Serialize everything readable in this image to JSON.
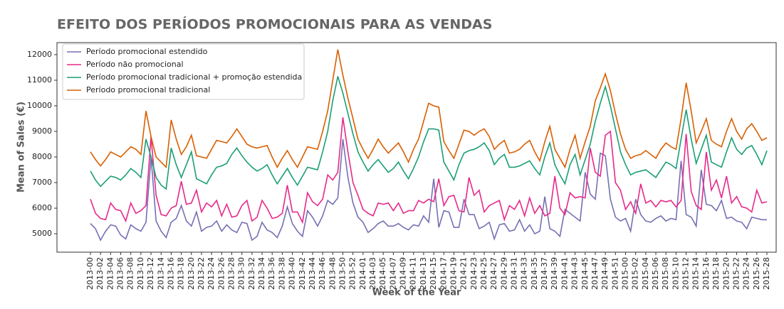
{
  "chart_data": {
    "type": "line",
    "title": "EFEITO DOS PERÍODOS PROMOCIONAIS PARA AS VENDAS",
    "xlabel": "Week of the Year",
    "ylabel": "Mean of Sales (€)",
    "legend": "upper left",
    "categories": [
      "2013-00",
      null,
      "2013-02",
      null,
      "2013-04",
      null,
      "2013-06",
      null,
      "2013-08",
      null,
      "2013-10",
      null,
      "2013-12",
      null,
      "2013-14",
      null,
      "2013-16",
      null,
      "2013-18",
      null,
      "2013-20",
      null,
      "2013-22",
      null,
      "2013-24",
      null,
      "2013-26",
      null,
      "2013-28",
      null,
      "2013-30",
      null,
      "2013-32",
      null,
      "2013-34",
      null,
      "2013-36",
      null,
      "2013-38",
      null,
      "2013-40",
      null,
      "2013-42",
      null,
      "2013-44",
      null,
      "2013-46",
      null,
      "2013-48",
      null,
      "2013-50",
      null,
      "2013-52",
      null,
      "2014-01",
      null,
      "2014-03",
      null,
      "2014-05",
      null,
      "2014-07",
      null,
      "2014-09",
      null,
      "2014-11",
      null,
      "2014-13",
      null,
      "2014-15",
      null,
      "2014-17",
      null,
      "2014-19",
      null,
      "2014-21",
      null,
      "2014-23",
      null,
      "2014-25",
      null,
      "2014-27",
      null,
      "2014-29",
      null,
      "2014-31",
      null,
      "2014-33",
      null,
      "2014-35",
      null,
      "2014-37",
      null,
      "2014-39",
      null,
      "2014-41",
      null,
      "2014-43",
      null,
      "2014-45",
      null,
      "2014-47",
      null,
      "2014-49",
      null,
      "2014-51",
      null,
      "2015-00",
      null,
      "2015-02",
      null,
      "2015-04",
      null,
      "2015-06",
      null,
      "2015-08",
      null,
      "2015-10",
      null,
      "2015-12",
      null,
      "2015-14",
      null,
      "2015-16",
      null,
      "2015-18",
      null,
      "2015-20",
      null,
      "2015-22",
      null,
      "2015-24",
      null,
      "2015-26",
      null,
      "2015-28"
    ],
    "ylim": [
      4280,
      12470
    ],
    "yticks": [
      5000,
      6000,
      7000,
      8000,
      9000,
      10000,
      11000,
      12000
    ],
    "series": [
      {
        "name": "Período promocional estendido",
        "color": "#7570b3",
        "values": [
          5400,
          5200,
          4750,
          5100,
          5350,
          5300,
          4950,
          4800,
          5350,
          5200,
          5100,
          5450,
          8000,
          5500,
          5100,
          4850,
          5450,
          5600,
          6100,
          5500,
          5300,
          5850,
          5100,
          5250,
          5300,
          5500,
          5100,
          5350,
          5150,
          5050,
          5450,
          5400,
          4750,
          4900,
          5450,
          5150,
          5050,
          4850,
          5300,
          6050,
          5400,
          5100,
          4900,
          5900,
          5650,
          5300,
          5700,
          6300,
          6150,
          6400,
          8700,
          7200,
          6200,
          5650,
          5450,
          5050,
          5200,
          5400,
          5500,
          5300,
          5300,
          5400,
          5250,
          5150,
          5350,
          5300,
          5700,
          5450,
          7150,
          5250,
          5900,
          5850,
          5250,
          5250,
          6350,
          5750,
          5750,
          5200,
          5300,
          5450,
          4800,
          5350,
          5400,
          5100,
          5150,
          5550,
          5100,
          5350,
          5000,
          5100,
          6450,
          5200,
          5100,
          4900,
          5950,
          5800,
          5650,
          5500,
          7400,
          6550,
          6350,
          8150,
          8050,
          6350,
          5650,
          5500,
          5600,
          5100,
          6350,
          5750,
          5500,
          5450,
          5600,
          5700,
          5500,
          5600,
          5550,
          7850,
          5750,
          5650,
          5300,
          7500,
          6150,
          6100,
          5900,
          6300,
          5600,
          5650,
          5500,
          5450,
          5200,
          5650,
          5600,
          5550,
          5550
        ]
      },
      {
        "name": "Período não promocional",
        "color": "#e7298a",
        "values": [
          6350,
          5800,
          5600,
          5550,
          6200,
          5950,
          5900,
          5500,
          6200,
          5800,
          5900,
          6100,
          8800,
          6500,
          5750,
          5700,
          6000,
          6100,
          7050,
          6150,
          6200,
          6700,
          5850,
          6200,
          6050,
          6300,
          5700,
          6150,
          5650,
          5700,
          6100,
          6300,
          5500,
          5650,
          6300,
          6000,
          5600,
          5650,
          5800,
          6900,
          5850,
          5850,
          5450,
          6600,
          6250,
          6100,
          6350,
          7300,
          7100,
          7400,
          9550,
          8200,
          7000,
          6500,
          5950,
          5800,
          5700,
          6200,
          6150,
          6200,
          5900,
          6200,
          5800,
          5900,
          5900,
          6300,
          6200,
          6350,
          6250,
          7150,
          6100,
          6450,
          6500,
          5900,
          5850,
          7200,
          6500,
          6700,
          5850,
          6100,
          6200,
          6300,
          5550,
          6100,
          5950,
          6300,
          5700,
          6400,
          5800,
          6100,
          5700,
          5800,
          7250,
          6000,
          5750,
          6600,
          6400,
          6450,
          6400,
          8350,
          7400,
          7250,
          8850,
          9000,
          7000,
          6700,
          5950,
          6250,
          5800,
          6950,
          6200,
          6300,
          6050,
          6300,
          6250,
          6300,
          6050,
          6300,
          8900,
          6650,
          6100,
          5950,
          8200,
          6700,
          7100,
          6400,
          7250,
          6200,
          6450,
          6050,
          6000,
          5850,
          6700,
          6200,
          6250
        ]
      },
      {
        "name": "Período promocional tradicional + promoção estendida",
        "color": "#1b9e77",
        "values": [
          7450,
          7100,
          6850,
          7050,
          7250,
          7200,
          7100,
          7300,
          7550,
          7400,
          7200,
          8700,
          8000,
          7200,
          6900,
          6750,
          8350,
          7700,
          7200,
          7700,
          8200,
          7150,
          7050,
          6950,
          7300,
          7600,
          7650,
          7750,
          8100,
          8350,
          8050,
          7800,
          7600,
          7450,
          7550,
          7700,
          7300,
          6950,
          7250,
          7550,
          7200,
          6900,
          7250,
          7600,
          7550,
          7500,
          8200,
          9000,
          10200,
          11150,
          10500,
          9700,
          8900,
          8200,
          7800,
          7450,
          7700,
          7900,
          7650,
          7400,
          7550,
          7800,
          7450,
          7150,
          7550,
          8000,
          8600,
          9100,
          9100,
          9050,
          7800,
          7450,
          7100,
          7700,
          8150,
          8250,
          8300,
          8400,
          8550,
          8250,
          7700,
          7950,
          8100,
          7600,
          7600,
          7650,
          7750,
          7850,
          7550,
          7300,
          8000,
          8550,
          7700,
          7300,
          6950,
          7700,
          8100,
          7300,
          7900,
          8500,
          9400,
          10100,
          10750,
          10000,
          9100,
          8200,
          7700,
          7300,
          7400,
          7450,
          7500,
          7350,
          7200,
          7500,
          7800,
          7700,
          7550,
          8700,
          9850,
          8700,
          7750,
          8300,
          8850,
          7800,
          7700,
          7600,
          8200,
          8750,
          8300,
          8100,
          8350,
          8450,
          8100,
          7700,
          8250
        ]
      },
      {
        "name": "Período promocional tradicional",
        "color": "#d95f02",
        "values": [
          8200,
          7900,
          7650,
          7900,
          8200,
          8100,
          8000,
          8200,
          8400,
          8300,
          8100,
          9800,
          8800,
          8000,
          7800,
          7600,
          9450,
          8700,
          8100,
          8400,
          8850,
          8050,
          8000,
          7950,
          8300,
          8650,
          8600,
          8550,
          8800,
          9100,
          8800,
          8500,
          8400,
          8350,
          8400,
          8450,
          8000,
          7600,
          7950,
          8250,
          7900,
          7600,
          8000,
          8400,
          8350,
          8300,
          9000,
          9800,
          11000,
          12200,
          11200,
          10300,
          9500,
          8700,
          8300,
          7950,
          8300,
          8700,
          8400,
          8150,
          8350,
          8550,
          8200,
          7800,
          8300,
          8700,
          9400,
          10100,
          10000,
          9950,
          8600,
          8250,
          7950,
          8500,
          9050,
          9000,
          8850,
          9000,
          9100,
          8800,
          8300,
          8500,
          8650,
          8150,
          8200,
          8300,
          8500,
          8650,
          8200,
          7850,
          8600,
          9200,
          8300,
          7950,
          7600,
          8300,
          8850,
          7950,
          8600,
          9200,
          10200,
          10700,
          11250,
          10600,
          9700,
          8900,
          8300,
          7950,
          8050,
          8100,
          8250,
          8100,
          7950,
          8300,
          8550,
          8400,
          8300,
          9500,
          10900,
          9800,
          8550,
          9000,
          9500,
          8650,
          8500,
          8400,
          9000,
          9500,
          9000,
          8700,
          9100,
          9300,
          9000,
          8650,
          8750
        ]
      }
    ]
  }
}
